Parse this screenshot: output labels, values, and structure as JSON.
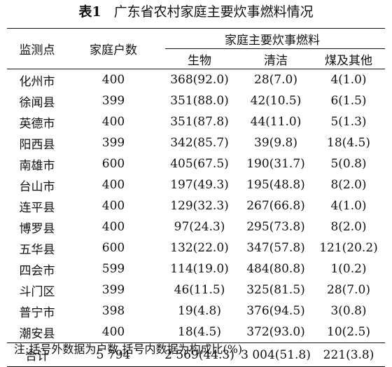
{
  "title": {
    "label": "表1",
    "text": "广东省农村家庭主要炊事燃料情况"
  },
  "table": {
    "headers": {
      "site": "监测点",
      "households": "家庭户数",
      "fuel_group": "家庭主要炊事燃料",
      "biomass": "生物",
      "clean": "清洁",
      "coal_other": "煤及其他"
    },
    "rows": [
      {
        "site": "化州市",
        "households": "400",
        "biomass": "368(92.0)",
        "clean": "28(7.0)",
        "coal_other": "4(1.0)"
      },
      {
        "site": "徐闻县",
        "households": "399",
        "biomass": "351(88.0)",
        "clean": "42(10.5)",
        "coal_other": "6(1.5)"
      },
      {
        "site": "英德市",
        "households": "400",
        "biomass": "351(87.8)",
        "clean": "44(11.0)",
        "coal_other": "5(1.3)"
      },
      {
        "site": "阳西县",
        "households": "399",
        "biomass": "342(85.7)",
        "clean": "39(9.8)",
        "coal_other": "18(4.5)"
      },
      {
        "site": "南雄市",
        "households": "600",
        "biomass": "405(67.5)",
        "clean": "190(31.7)",
        "coal_other": "5(0.8)"
      },
      {
        "site": "台山市",
        "households": "400",
        "biomass": "197(49.3)",
        "clean": "195(48.8)",
        "coal_other": "8(2.0)"
      },
      {
        "site": "连平县",
        "households": "400",
        "biomass": "129(32.3)",
        "clean": "267(66.8)",
        "coal_other": "4(1.0)"
      },
      {
        "site": "博罗县",
        "households": "400",
        "biomass": "97(24.3)",
        "clean": "295(73.8)",
        "coal_other": "8(2.0)"
      },
      {
        "site": "五华县",
        "households": "600",
        "biomass": "132(22.0)",
        "clean": "347(57.8)",
        "coal_other": "121(20.2)"
      },
      {
        "site": "四会市",
        "households": "599",
        "biomass": "114(19.0)",
        "clean": "484(80.8)",
        "coal_other": "1(0.2)"
      },
      {
        "site": "斗门区",
        "households": "399",
        "biomass": "46(11.5)",
        "clean": "325(81.5)",
        "coal_other": "28(7.0)"
      },
      {
        "site": "普宁市",
        "households": "398",
        "biomass": "19(4.8)",
        "clean": "376(94.5)",
        "coal_other": "3(0.8)"
      },
      {
        "site": "潮安县",
        "households": "400",
        "biomass": "18(4.5)",
        "clean": "372(93.0)",
        "coal_other": "10(2.5)"
      }
    ],
    "total": {
      "site": "合计",
      "households": "5 794",
      "biomass": "2 569(44.3)",
      "clean": "3 004(51.8)",
      "coal_other": "221(3.8)"
    }
  },
  "note": "注:括号外数据为户数,括号内数据为构成比(%)"
}
